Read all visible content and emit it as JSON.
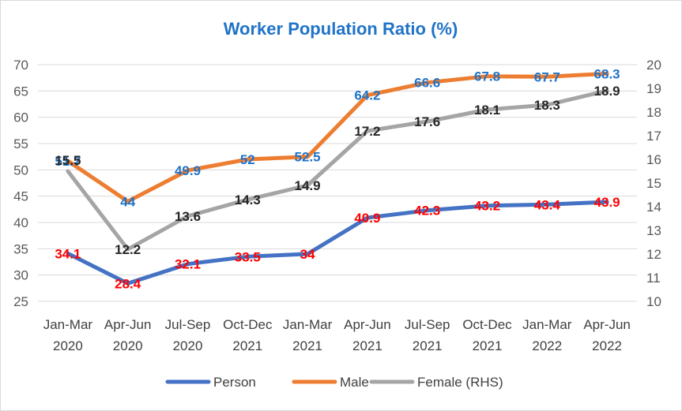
{
  "chart_data": {
    "type": "line",
    "title": "Worker Population Ratio (%)",
    "categories": [
      [
        "Jan-Mar",
        "2020"
      ],
      [
        "Apr-Jun",
        "2020"
      ],
      [
        "Jul-Sep",
        "2020"
      ],
      [
        "Oct-Dec",
        "2021"
      ],
      [
        "Jan-Mar",
        "2021"
      ],
      [
        "Apr-Jun",
        "2021"
      ],
      [
        "Jul-Sep",
        "2021"
      ],
      [
        "Oct-Dec",
        "2021"
      ],
      [
        "Jan-Mar",
        "2022"
      ],
      [
        "Apr-Jun",
        "2022"
      ]
    ],
    "y_left": {
      "min": 25,
      "max": 70,
      "ticks": [
        "25",
        "30",
        "35",
        "40",
        "45",
        "50",
        "55",
        "60",
        "65",
        "70"
      ]
    },
    "y_right": {
      "min": 10,
      "max": 20,
      "ticks": [
        "10",
        "11",
        "12",
        "13",
        "14",
        "15",
        "16",
        "17",
        "18",
        "19",
        "20"
      ]
    },
    "grid": true,
    "legend_position": "bottom",
    "series": [
      {
        "name": "Person",
        "axis": "left",
        "color": "#4472c4",
        "label_color": "#ff0000",
        "values": [
          34.1,
          28.4,
          32.1,
          33.5,
          34,
          40.9,
          42.3,
          43.2,
          43.4,
          43.9
        ],
        "labels": [
          "34.1",
          "28.4",
          "32.1",
          "33.5",
          "34",
          "40.9",
          "42.3",
          "43.2",
          "43.4",
          "43.9"
        ]
      },
      {
        "name": "Male",
        "axis": "left",
        "color": "#ed7d31",
        "label_color": "#1f73c8",
        "values": [
          51.7,
          44,
          49.9,
          52,
          52.5,
          64.2,
          66.6,
          67.8,
          67.7,
          68.3
        ],
        "labels": [
          "51.7",
          "44",
          "49.9",
          "52",
          "52.5",
          "64.2",
          "66.6",
          "67.8",
          "67.7",
          "68.3"
        ]
      },
      {
        "name": "Female (RHS)",
        "axis": "right",
        "color": "#a5a5a5",
        "label_color": "#262626",
        "values": [
          15.5,
          12.2,
          13.6,
          14.3,
          14.9,
          17.2,
          17.6,
          18.1,
          18.3,
          18.9
        ],
        "labels": [
          "15.5",
          "12.2",
          "13.6",
          "14.3",
          "14.9",
          "17.2",
          "17.6",
          "18.1",
          "18.3",
          "18.9"
        ]
      }
    ]
  }
}
